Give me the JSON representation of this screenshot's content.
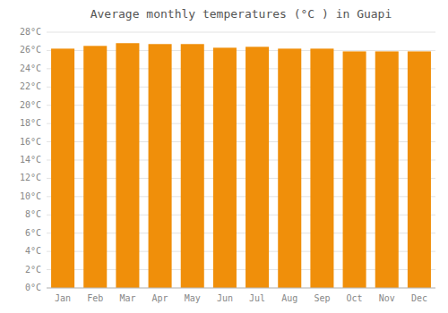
{
  "chart_data": {
    "type": "bar",
    "title": "Average monthly temperatures (°C ) in Guapi",
    "categories": [
      "Jan",
      "Feb",
      "Mar",
      "Apr",
      "May",
      "Jun",
      "Jul",
      "Aug",
      "Sep",
      "Oct",
      "Nov",
      "Dec"
    ],
    "values": [
      26.2,
      26.5,
      26.8,
      26.7,
      26.7,
      26.3,
      26.4,
      26.2,
      26.2,
      25.9,
      25.9,
      25.9
    ],
    "color": "#F08F0A",
    "ylim": [
      0,
      28
    ],
    "yticks": [
      {
        "value": 0,
        "label": "0°C"
      },
      {
        "value": 2,
        "label": "2°C"
      },
      {
        "value": 4,
        "label": "4°C"
      },
      {
        "value": 6,
        "label": "6°C"
      },
      {
        "value": 8,
        "label": "8°C"
      },
      {
        "value": 10,
        "label": "10°C"
      },
      {
        "value": 12,
        "label": "12°C"
      },
      {
        "value": 14,
        "label": "14°C"
      },
      {
        "value": 16,
        "label": "16°C"
      },
      {
        "value": 18,
        "label": "18°C"
      },
      {
        "value": 20,
        "label": "20°C"
      },
      {
        "value": 22,
        "label": "22°C"
      },
      {
        "value": 24,
        "label": "24°C"
      },
      {
        "value": 26,
        "label": "26°C"
      },
      {
        "value": 28,
        "label": "28°C"
      }
    ],
    "grid": true
  }
}
